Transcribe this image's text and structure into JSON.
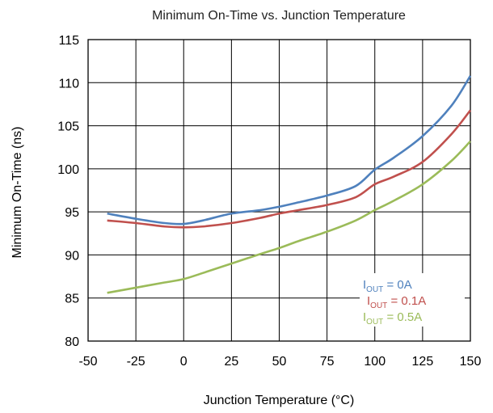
{
  "chart_data": {
    "type": "line",
    "title": "Minimum On-Time vs. Junction Temperature",
    "xlabel": "Junction Temperature (°C)",
    "ylabel": "Minimum On-Time (ns)",
    "xlim": [
      -50,
      150
    ],
    "ylim": [
      80,
      115
    ],
    "xticks": [
      -50,
      -25,
      0,
      25,
      50,
      75,
      100,
      125,
      150
    ],
    "yticks": [
      80,
      85,
      90,
      95,
      100,
      105,
      110,
      115
    ],
    "grid": true,
    "legend": "bottom-right",
    "series": [
      {
        "name_main": "I",
        "name_sub": "OUT",
        "name_rest": " = 0A",
        "color": "#4f81bd",
        "x": [
          -40,
          -25,
          -10,
          0,
          10,
          25,
          40,
          50,
          60,
          75,
          90,
          100,
          110,
          125,
          140,
          150
        ],
        "y": [
          94.8,
          94.2,
          93.7,
          93.6,
          94.0,
          94.8,
          95.2,
          95.6,
          96.1,
          96.9,
          98.0,
          99.9,
          101.3,
          103.8,
          107.3,
          110.8
        ]
      },
      {
        "name_main": "I",
        "name_sub": "OUT",
        "name_rest": " = 0.1A",
        "color": "#c0504d",
        "x": [
          -40,
          -25,
          -10,
          0,
          10,
          25,
          40,
          50,
          60,
          75,
          90,
          100,
          110,
          125,
          140,
          150
        ],
        "y": [
          94.0,
          93.7,
          93.3,
          93.2,
          93.3,
          93.7,
          94.3,
          94.8,
          95.2,
          95.8,
          96.7,
          98.2,
          99.1,
          100.8,
          104.0,
          106.8
        ]
      },
      {
        "name_main": "I",
        "name_sub": "OUT",
        "name_rest": " = 0.5A",
        "color": "#9bbb59",
        "x": [
          -40,
          -25,
          -10,
          0,
          10,
          25,
          40,
          50,
          60,
          75,
          90,
          100,
          110,
          125,
          140,
          150
        ],
        "y": [
          85.6,
          86.2,
          86.8,
          87.2,
          87.9,
          89.0,
          90.1,
          90.8,
          91.6,
          92.7,
          94.0,
          95.2,
          96.3,
          98.2,
          100.9,
          103.2
        ]
      }
    ]
  }
}
